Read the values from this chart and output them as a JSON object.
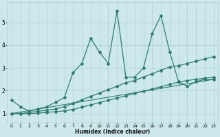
{
  "xlabel": "Humidex (Indice chaleur)",
  "bg_color": "#cce8ea",
  "line_color": "#2e7d6e",
  "grid_color": "#aacfd0",
  "xlim": [
    -0.5,
    23.5
  ],
  "ylim": [
    0.6,
    5.9
  ],
  "yticks": [
    1,
    2,
    3,
    4,
    5
  ],
  "xticks": [
    0,
    1,
    2,
    3,
    4,
    5,
    6,
    7,
    8,
    9,
    10,
    11,
    12,
    13,
    14,
    15,
    16,
    17,
    18,
    19,
    20,
    21,
    22,
    23
  ],
  "series": [
    {
      "x": [
        0,
        1,
        2,
        3,
        4,
        5,
        6,
        7,
        8,
        9,
        10,
        11,
        12,
        13,
        14,
        15,
        16,
        17,
        18,
        19,
        20,
        21,
        22,
        23
      ],
      "y": [
        1.6,
        1.3,
        1.1,
        1.2,
        1.3,
        1.5,
        1.7,
        2.8,
        3.2,
        4.3,
        3.7,
        3.2,
        5.5,
        2.6,
        2.6,
        3.0,
        4.5,
        5.3,
        3.7,
        2.4,
        2.2,
        2.4,
        2.5,
        2.5
      ],
      "marker": "D",
      "markersize": 2.0,
      "linewidth": 0.9
    },
    {
      "x": [
        0,
        1,
        2,
        3,
        4,
        5,
        6,
        7,
        8,
        9,
        10,
        11,
        12,
        13,
        14,
        15,
        16,
        17,
        18,
        19,
        20,
        21,
        22,
        23
      ],
      "y": [
        1.0,
        1.0,
        1.05,
        1.1,
        1.15,
        1.2,
        1.3,
        1.45,
        1.6,
        1.75,
        1.9,
        2.05,
        2.2,
        2.35,
        2.45,
        2.6,
        2.75,
        2.9,
        3.05,
        3.1,
        3.2,
        3.3,
        3.4,
        3.5
      ],
      "marker": "D",
      "markersize": 2.0,
      "linewidth": 0.9
    },
    {
      "x": [
        0,
        1,
        2,
        3,
        4,
        5,
        6,
        7,
        8,
        9,
        10,
        11,
        12,
        13,
        14,
        15,
        16,
        17,
        18,
        19,
        20,
        21,
        22,
        23
      ],
      "y": [
        1.0,
        1.0,
        1.0,
        1.02,
        1.05,
        1.08,
        1.12,
        1.18,
        1.28,
        1.38,
        1.48,
        1.58,
        1.68,
        1.78,
        1.88,
        1.98,
        2.08,
        2.18,
        2.28,
        2.38,
        2.45,
        2.5,
        2.55,
        2.6
      ],
      "marker": "D",
      "markersize": 2.0,
      "linewidth": 0.9
    },
    {
      "x": [
        0,
        23
      ],
      "y": [
        1.0,
        2.5
      ],
      "marker": null,
      "markersize": 0,
      "linewidth": 0.8
    }
  ]
}
